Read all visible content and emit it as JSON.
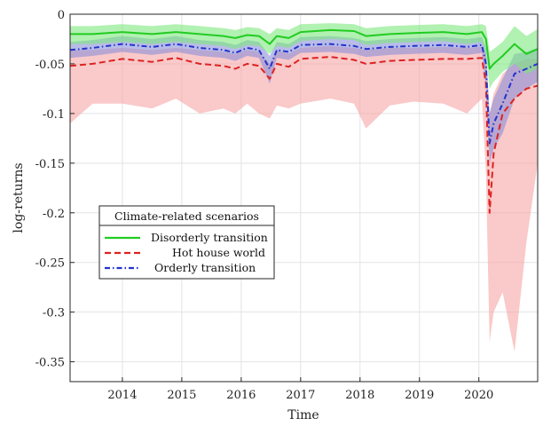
{
  "chart_data": {
    "type": "line",
    "title": "",
    "xlabel": "Time",
    "ylabel": "log-returns",
    "xlim": [
      2013.12,
      2020.99
    ],
    "ylim": [
      -0.37,
      0
    ],
    "x_ticks": [
      2014,
      2015,
      2016,
      2017,
      2018,
      2019,
      2020
    ],
    "x_tick_labels": [
      "2014",
      "2015",
      "2016",
      "2017",
      "2018",
      "2019",
      "2020"
    ],
    "y_ticks": [
      0,
      -0.05,
      -0.1,
      -0.15,
      -0.2,
      -0.25,
      -0.3,
      -0.35
    ],
    "y_tick_labels": [
      "0",
      "-0.05",
      "-0.1",
      "-0.15",
      "-0.2",
      "-0.25",
      "-0.3",
      "-0.35"
    ],
    "grid": true,
    "legend": {
      "title": "Climate-related scenarios",
      "position": "center-left"
    },
    "series": [
      {
        "name": "Disorderly transition",
        "color": "#22cc22",
        "band_color": "#7de87d",
        "style": "solid",
        "x": [
          2013.12,
          2013.5,
          2014.0,
          2014.5,
          2014.9,
          2015.3,
          2015.7,
          2015.9,
          2016.1,
          2016.3,
          2016.48,
          2016.6,
          2016.8,
          2017.0,
          2017.5,
          2017.9,
          2018.1,
          2018.5,
          2018.9,
          2019.4,
          2019.8,
          2020.05,
          2020.12,
          2020.18,
          2020.25,
          2020.4,
          2020.6,
          2020.8,
          2020.99
        ],
        "values": [
          -0.02,
          -0.02,
          -0.018,
          -0.02,
          -0.018,
          -0.02,
          -0.022,
          -0.024,
          -0.021,
          -0.022,
          -0.03,
          -0.022,
          -0.024,
          -0.018,
          -0.016,
          -0.017,
          -0.022,
          -0.02,
          -0.019,
          -0.018,
          -0.02,
          -0.018,
          -0.025,
          -0.055,
          -0.05,
          -0.042,
          -0.03,
          -0.04,
          -0.035
        ],
        "band_upper": [
          -0.012,
          -0.012,
          -0.01,
          -0.012,
          -0.01,
          -0.012,
          -0.014,
          -0.016,
          -0.013,
          -0.014,
          -0.02,
          -0.014,
          -0.016,
          -0.01,
          -0.009,
          -0.01,
          -0.014,
          -0.012,
          -0.011,
          -0.01,
          -0.012,
          -0.01,
          -0.012,
          -0.038,
          -0.035,
          -0.028,
          -0.012,
          -0.022,
          -0.015
        ],
        "band_lower": [
          -0.03,
          -0.03,
          -0.028,
          -0.03,
          -0.028,
          -0.03,
          -0.032,
          -0.035,
          -0.031,
          -0.032,
          -0.04,
          -0.032,
          -0.034,
          -0.027,
          -0.025,
          -0.026,
          -0.031,
          -0.029,
          -0.028,
          -0.027,
          -0.03,
          -0.028,
          -0.04,
          -0.075,
          -0.068,
          -0.058,
          -0.05,
          -0.06,
          -0.055
        ]
      },
      {
        "name": "Hot house world",
        "color": "#dd2222",
        "band_color": "#f7a5a5",
        "style": "dashed",
        "x": [
          2013.12,
          2013.5,
          2014.0,
          2014.5,
          2014.9,
          2015.3,
          2015.7,
          2015.9,
          2016.1,
          2016.3,
          2016.48,
          2016.6,
          2016.8,
          2017.0,
          2017.5,
          2017.9,
          2018.1,
          2018.5,
          2018.9,
          2019.4,
          2019.8,
          2020.05,
          2020.12,
          2020.18,
          2020.25,
          2020.4,
          2020.6,
          2020.8,
          2020.99
        ],
        "values": [
          -0.052,
          -0.05,
          -0.045,
          -0.048,
          -0.044,
          -0.05,
          -0.052,
          -0.055,
          -0.05,
          -0.052,
          -0.065,
          -0.05,
          -0.053,
          -0.045,
          -0.043,
          -0.046,
          -0.05,
          -0.047,
          -0.046,
          -0.045,
          -0.045,
          -0.044,
          -0.07,
          -0.2,
          -0.14,
          -0.1,
          -0.085,
          -0.075,
          -0.072
        ],
        "band_upper": [
          -0.036,
          -0.036,
          -0.034,
          -0.036,
          -0.034,
          -0.036,
          -0.038,
          -0.04,
          -0.036,
          -0.038,
          -0.05,
          -0.036,
          -0.04,
          -0.034,
          -0.032,
          -0.034,
          -0.036,
          -0.034,
          -0.034,
          -0.033,
          -0.034,
          -0.033,
          -0.04,
          -0.1,
          -0.08,
          -0.06,
          -0.05,
          -0.045,
          -0.045
        ],
        "band_lower": [
          -0.11,
          -0.09,
          -0.09,
          -0.095,
          -0.085,
          -0.1,
          -0.095,
          -0.1,
          -0.09,
          -0.1,
          -0.105,
          -0.092,
          -0.095,
          -0.09,
          -0.085,
          -0.09,
          -0.115,
          -0.092,
          -0.088,
          -0.09,
          -0.1,
          -0.085,
          -0.16,
          -0.33,
          -0.3,
          -0.28,
          -0.34,
          -0.23,
          -0.15
        ]
      },
      {
        "name": "Orderly transition",
        "color": "#2233cc",
        "band_color": "#8a8fd8",
        "style": "dashdot",
        "x": [
          2013.12,
          2013.5,
          2014.0,
          2014.5,
          2014.9,
          2015.3,
          2015.7,
          2015.9,
          2016.1,
          2016.3,
          2016.48,
          2016.6,
          2016.8,
          2017.0,
          2017.5,
          2017.9,
          2018.1,
          2018.5,
          2018.9,
          2019.4,
          2019.8,
          2020.05,
          2020.12,
          2020.18,
          2020.25,
          2020.4,
          2020.6,
          2020.8,
          2020.99
        ],
        "values": [
          -0.036,
          -0.034,
          -0.03,
          -0.033,
          -0.03,
          -0.034,
          -0.036,
          -0.039,
          -0.034,
          -0.036,
          -0.055,
          -0.036,
          -0.038,
          -0.031,
          -0.03,
          -0.032,
          -0.035,
          -0.033,
          -0.032,
          -0.031,
          -0.033,
          -0.031,
          -0.05,
          -0.13,
          -0.11,
          -0.09,
          -0.06,
          -0.055,
          -0.05
        ],
        "band_upper": [
          -0.028,
          -0.026,
          -0.022,
          -0.025,
          -0.022,
          -0.026,
          -0.028,
          -0.031,
          -0.026,
          -0.028,
          -0.042,
          -0.028,
          -0.03,
          -0.023,
          -0.022,
          -0.024,
          -0.027,
          -0.025,
          -0.024,
          -0.023,
          -0.025,
          -0.023,
          -0.034,
          -0.1,
          -0.085,
          -0.065,
          -0.04,
          -0.038,
          -0.034
        ],
        "band_lower": [
          -0.044,
          -0.042,
          -0.038,
          -0.041,
          -0.038,
          -0.042,
          -0.044,
          -0.047,
          -0.042,
          -0.044,
          -0.07,
          -0.044,
          -0.046,
          -0.039,
          -0.038,
          -0.04,
          -0.043,
          -0.041,
          -0.04,
          -0.039,
          -0.041,
          -0.039,
          -0.075,
          -0.15,
          -0.135,
          -0.12,
          -0.085,
          -0.075,
          -0.068
        ]
      }
    ]
  }
}
